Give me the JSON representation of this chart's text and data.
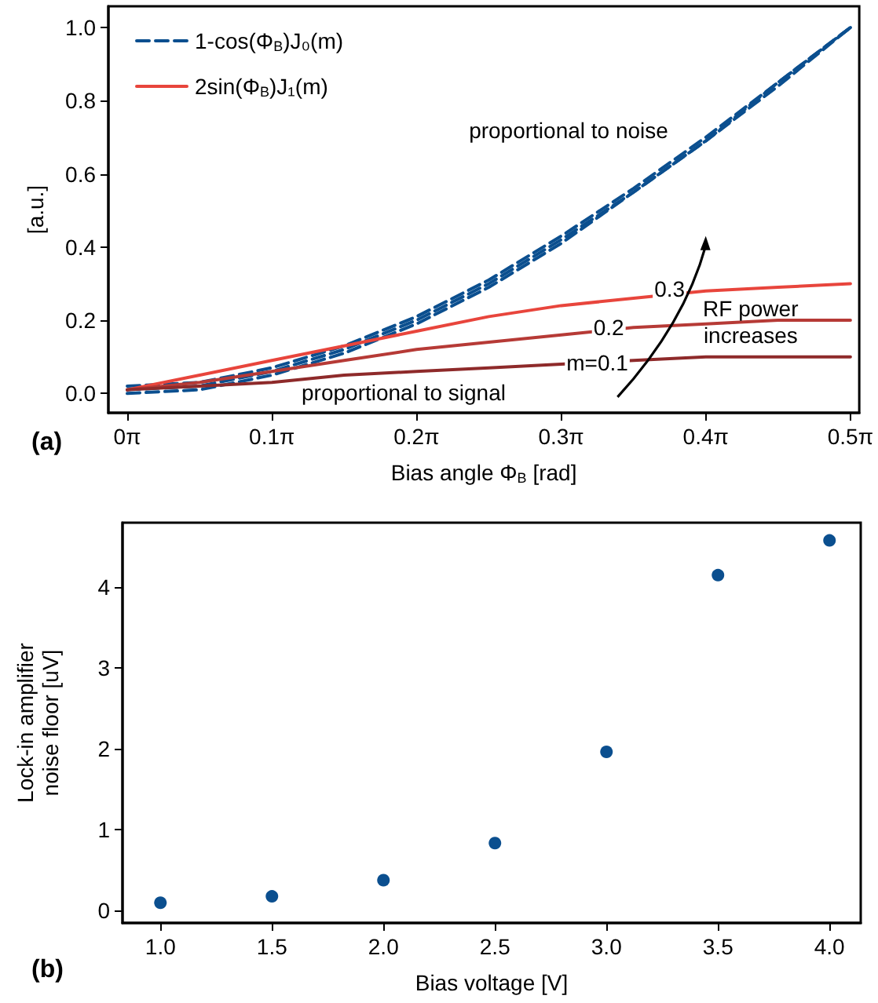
{
  "chart_data": [
    {
      "type": "line",
      "xlabel": "Bias angle Φ$_{B}$ [rad]",
      "ylabel": "[a.u.]",
      "x": [
        0,
        0.1571,
        0.3142,
        0.4712,
        0.6283,
        0.7854,
        0.9425,
        1.0996,
        1.2566,
        1.4137,
        1.5708
      ],
      "series": [
        {
          "name": "1-cos(Φ$_{B}$)J₀(m)",
          "color": "#0b4f8f",
          "line_style": "dashed",
          "values": [
            0.02,
            0.03,
            0.07,
            0.13,
            0.21,
            0.31,
            0.43,
            0.56,
            0.7,
            0.85,
            1.0
          ]
        },
        {
          "color": "#0b4f8f",
          "line_style": "dashed",
          "values": [
            0.01,
            0.02,
            0.06,
            0.12,
            0.2,
            0.3,
            0.42,
            0.55,
            0.69,
            0.85,
            1.0
          ]
        },
        {
          "color": "#0b4f8f",
          "line_style": "dashed",
          "values": [
            0.0,
            0.01,
            0.05,
            0.11,
            0.19,
            0.29,
            0.41,
            0.55,
            0.69,
            0.84,
            1.0
          ]
        },
        {
          "name": "2sin(Φ$_{B}$)J₁(m)",
          "color": "#e8453c",
          "line_style": "solid",
          "values": [
            0.01,
            0.05,
            0.09,
            0.13,
            0.17,
            0.21,
            0.24,
            0.26,
            0.28,
            0.29,
            0.3
          ]
        },
        {
          "color": "#b63a36",
          "line_style": "solid",
          "values": [
            0.01,
            0.03,
            0.06,
            0.09,
            0.12,
            0.14,
            0.16,
            0.18,
            0.19,
            0.2,
            0.2
          ]
        },
        {
          "color": "#8e2a2a",
          "line_style": "solid",
          "values": [
            0.01,
            0.02,
            0.03,
            0.05,
            0.06,
            0.07,
            0.08,
            0.09,
            0.1,
            0.1,
            0.1
          ]
        }
      ],
      "xlim": [
        -0.041,
        1.59
      ],
      "ylim": [
        -0.053,
        1.058
      ],
      "xticks": [
        {
          "value": 0,
          "label": "0π"
        },
        {
          "value": 0.3142,
          "label": "0.1π"
        },
        {
          "value": 0.6283,
          "label": "0.2π"
        },
        {
          "value": 0.9425,
          "label": "0.3π"
        },
        {
          "value": 1.2566,
          "label": "0.4π"
        },
        {
          "value": 1.5708,
          "label": "0.5π"
        }
      ],
      "yticks": [
        {
          "value": 0,
          "label": "0.0"
        },
        {
          "value": 0.2,
          "label": "0.2"
        },
        {
          "value": 0.4,
          "label": "0.4"
        },
        {
          "value": 0.6,
          "label": "0.6"
        },
        {
          "value": 0.8,
          "label": "0.8"
        },
        {
          "value": 1,
          "label": "1.0"
        }
      ],
      "grid": false,
      "legend": "top left",
      "marker": "none",
      "annotations": [
        "proportional to noise",
        "proportional to signal",
        {
          "text": "0.3",
          "x": 1.178,
          "y": 0.285
        },
        {
          "text": "0.2",
          "x": 1.046,
          "y": 0.18
        },
        {
          "text": "m=0.1",
          "x": 1.021,
          "y": 0.085
        },
        {
          "text": "RF power\nincreases",
          "x": 1.354,
          "y": 0.195
        },
        "(a)"
      ]
    },
    {
      "type": "scatter",
      "xlabel": "Bias voltage [V]",
      "ylabel": "Lock-in amplifier\nnoise floor [uV]",
      "x": [
        1.0,
        1.5,
        2.0,
        2.5,
        3.0,
        3.5,
        4.0
      ],
      "series": [
        {
          "color": "#0b4f8f",
          "values": [
            0.09,
            0.17,
            0.37,
            0.83,
            1.96,
            4.15,
            4.58
          ]
        }
      ],
      "xlim": [
        0.83,
        4.14
      ],
      "ylim": [
        -0.16,
        4.8
      ],
      "xticks": [
        {
          "value": 1,
          "label": "1.0"
        },
        {
          "value": 1.5,
          "label": "1.5"
        },
        {
          "value": 2,
          "label": "2.0"
        },
        {
          "value": 2.5,
          "label": "2.5"
        },
        {
          "value": 3,
          "label": "3.0"
        },
        {
          "value": 3.5,
          "label": "3.5"
        },
        {
          "value": 4,
          "label": "4.0"
        }
      ],
      "yticks": [
        0,
        1,
        2,
        3,
        4
      ],
      "grid": false,
      "marker": "circle",
      "annotations": [
        "(b)"
      ]
    }
  ]
}
